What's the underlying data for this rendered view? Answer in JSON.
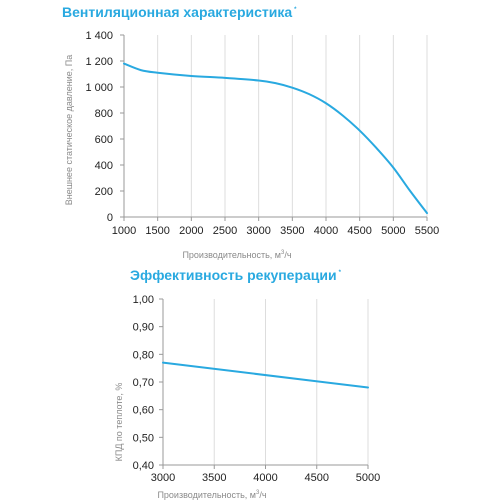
{
  "colors": {
    "accent": "#29a9e0",
    "title": "#29a9e0",
    "grid": "#dddddd",
    "axis": "#999999"
  },
  "chart_data": [
    {
      "type": "line",
      "title": "Вентиляционная характеристика",
      "title_mark": "*",
      "xlabel": "Производительность, м",
      "xlabel_sup": "3",
      "xlabel_suffix": "/ч",
      "ylabel": "Внешнее статическое давление, Па",
      "xlim": [
        1000,
        5500
      ],
      "ylim": [
        0,
        1400
      ],
      "x_ticks": [
        1000,
        1500,
        2000,
        2500,
        3000,
        3500,
        4000,
        4500,
        5000,
        5500
      ],
      "x_tick_labels": [
        "1000",
        "1500",
        "2000",
        "2500",
        "3000",
        "3500",
        "4000",
        "4500",
        "5000",
        "5500"
      ],
      "y_ticks": [
        0,
        200,
        400,
        600,
        800,
        1000,
        1200,
        1400
      ],
      "y_tick_labels": [
        "0",
        "200",
        "400",
        "600",
        "800",
        "1 000",
        "1 200",
        "1 400"
      ],
      "grid": "vertical",
      "series": [
        {
          "x": [
            1000,
            1250,
            1500,
            2000,
            2500,
            3000,
            3250,
            3500,
            3750,
            4000,
            4250,
            4500,
            4750,
            5000,
            5250,
            5500
          ],
          "values": [
            1180,
            1130,
            1110,
            1085,
            1070,
            1050,
            1030,
            995,
            945,
            875,
            780,
            665,
            530,
            380,
            200,
            30
          ]
        }
      ]
    },
    {
      "type": "line",
      "title": "Эффективность рекуперации",
      "title_mark": "*",
      "xlabel": "Производительность, м",
      "xlabel_sup": "3",
      "xlabel_suffix": "/ч",
      "ylabel": "КПД по теплоте, %",
      "xlim": [
        3000,
        5000
      ],
      "ylim": [
        0.4,
        1.0
      ],
      "x_ticks": [
        3000,
        3500,
        4000,
        4500,
        5000
      ],
      "x_tick_labels": [
        "3000",
        "3500",
        "4000",
        "4500",
        "5000"
      ],
      "y_ticks": [
        0.4,
        0.5,
        0.6,
        0.7,
        0.8,
        0.9,
        1.0
      ],
      "y_tick_labels": [
        "0,40",
        "0,50",
        "0,60",
        "0,70",
        "0,80",
        "0,90",
        "1,00"
      ],
      "grid": "vertical",
      "series": [
        {
          "x": [
            3000,
            5000
          ],
          "values": [
            0.77,
            0.68
          ]
        }
      ]
    }
  ]
}
